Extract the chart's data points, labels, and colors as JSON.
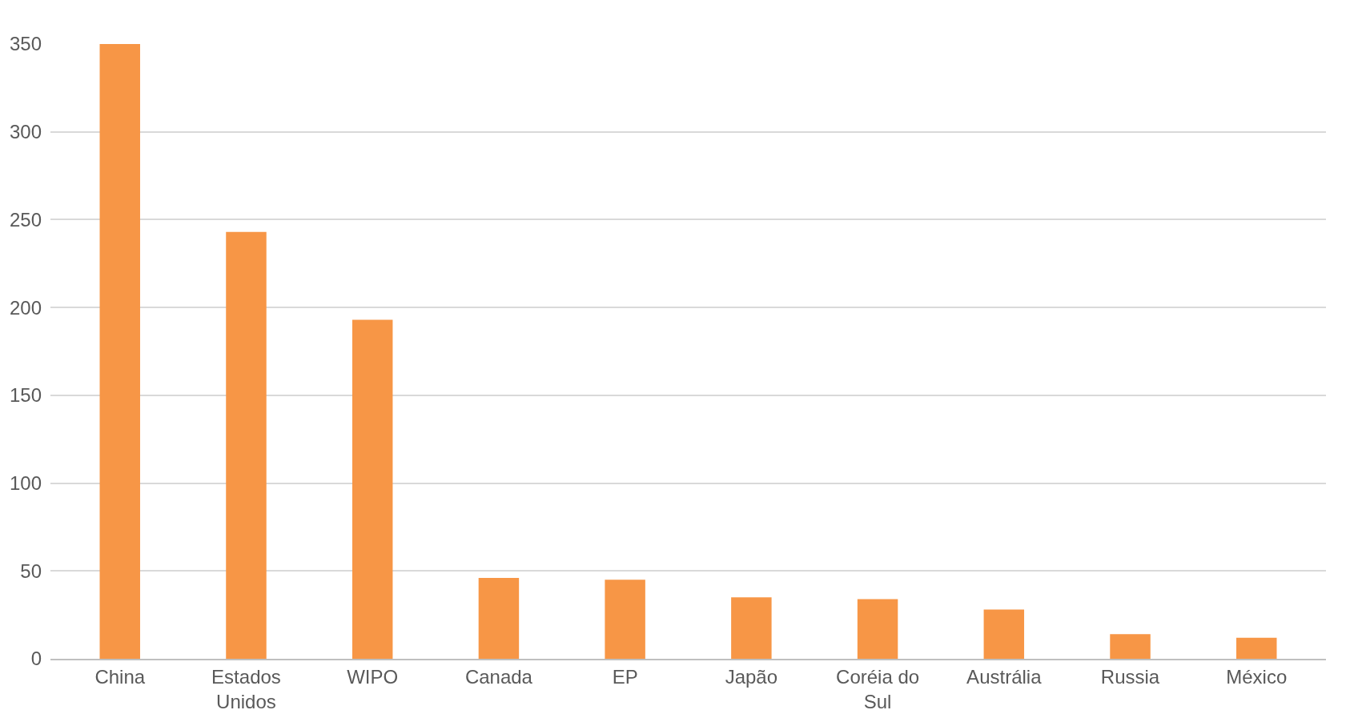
{
  "chart_data": {
    "type": "bar",
    "categories": [
      "China",
      "Estados Unidos",
      "WIPO",
      "Canada",
      "EP",
      "Japão",
      "Coréia do Sul",
      "Austrália",
      "Russia",
      "México"
    ],
    "values": [
      350,
      243,
      193,
      46,
      45,
      35,
      34,
      28,
      14,
      12
    ],
    "color": "#f79646",
    "ylim": [
      0,
      350
    ],
    "yticks": [
      0,
      50,
      100,
      150,
      200,
      250,
      300,
      350
    ],
    "grid": "y"
  }
}
